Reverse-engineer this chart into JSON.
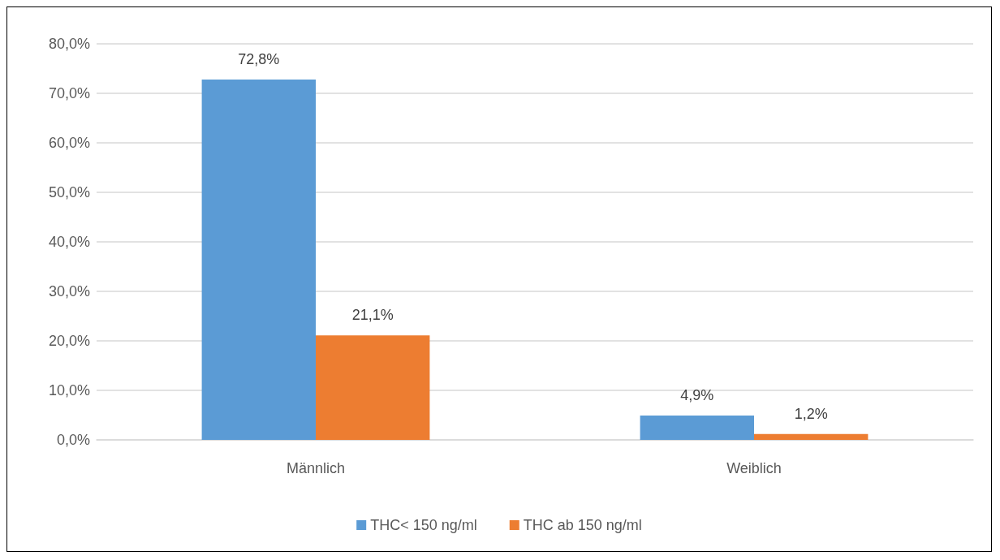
{
  "chart_data": {
    "type": "bar",
    "categories": [
      "Männlich",
      "Weiblich"
    ],
    "series": [
      {
        "name": "THC< 150 ng/ml",
        "color": "#5b9bd5",
        "values": [
          72.8,
          4.9
        ],
        "value_labels": [
          "72,8%",
          "4,9%"
        ]
      },
      {
        "name": "THC ab 150 ng/ml",
        "color": "#ed7d31",
        "values": [
          21.1,
          1.2
        ],
        "value_labels": [
          "21,1%",
          "1,2%"
        ]
      }
    ],
    "ylim": [
      0,
      80
    ],
    "yticks": [
      {
        "value": 0,
        "label": "0,0%"
      },
      {
        "value": 10,
        "label": "10,0%"
      },
      {
        "value": 20,
        "label": "20,0%"
      },
      {
        "value": 30,
        "label": "30,0%"
      },
      {
        "value": 40,
        "label": "40,0%"
      },
      {
        "value": 50,
        "label": "50,0%"
      },
      {
        "value": 60,
        "label": "60,0%"
      },
      {
        "value": 70,
        "label": "70,0%"
      },
      {
        "value": 80,
        "label": "80,0%"
      }
    ],
    "grid": "y",
    "legend": "bottom"
  }
}
